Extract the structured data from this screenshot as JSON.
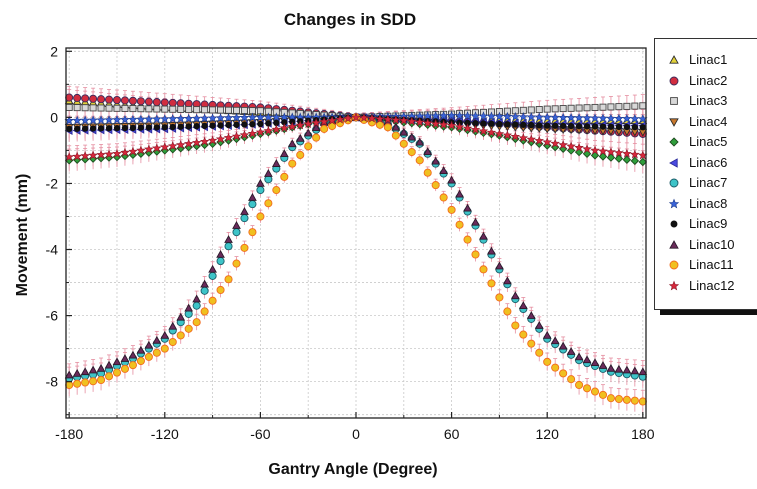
{
  "chart_data": {
    "type": "scatter",
    "title": "Changes in SDD",
    "xlabel": "Gantry Angle (Degree)",
    "ylabel": "Movement (mm)",
    "xlim": [
      -182,
      182
    ],
    "ylim": [
      -9.1,
      2.1
    ],
    "xticks": [
      -180,
      -120,
      -60,
      0,
      60,
      120,
      180
    ],
    "yticks": [
      2,
      0,
      -2,
      -4,
      -6,
      -8
    ],
    "grid": true,
    "error_bars": true,
    "legend_position": "right-outside",
    "series": [
      {
        "name": "Linac1",
        "marker": "triangle-up",
        "fill": "#e3d23a",
        "stroke": "#2b2b2b",
        "points": [
          [
            -180,
            0.5
          ],
          [
            -120,
            0.3
          ],
          [
            -60,
            0.15
          ],
          [
            0,
            0.0
          ],
          [
            60,
            -0.05
          ],
          [
            120,
            -0.1
          ],
          [
            180,
            -0.1
          ]
        ]
      },
      {
        "name": "Linac2",
        "marker": "circle",
        "fill": "#d12d3f",
        "stroke": "#3a2a5a",
        "points": [
          [
            -180,
            0.6
          ],
          [
            -120,
            0.45
          ],
          [
            -60,
            0.3
          ],
          [
            0,
            0.0
          ],
          [
            60,
            -0.1
          ],
          [
            120,
            -0.3
          ],
          [
            180,
            -0.5
          ]
        ]
      },
      {
        "name": "Linac3",
        "marker": "square",
        "fill": "#d8d8d8",
        "stroke": "#444444",
        "points": [
          [
            -180,
            0.3
          ],
          [
            -120,
            0.25
          ],
          [
            -60,
            0.2
          ],
          [
            0,
            0.0
          ],
          [
            60,
            0.1
          ],
          [
            120,
            0.25
          ],
          [
            180,
            0.35
          ]
        ]
      },
      {
        "name": "Linac4",
        "marker": "triangle-down",
        "fill": "#c8782d",
        "stroke": "#2b2b2b",
        "points": [
          [
            -180,
            -0.3
          ],
          [
            -120,
            -0.25
          ],
          [
            -60,
            -0.15
          ],
          [
            0,
            0.0
          ],
          [
            60,
            -0.2
          ],
          [
            120,
            -0.35
          ],
          [
            180,
            -0.45
          ]
        ]
      },
      {
        "name": "Linac5",
        "marker": "diamond",
        "fill": "#2f9e3b",
        "stroke": "#1e4a1e",
        "points": [
          [
            -180,
            -1.3
          ],
          [
            -150,
            -1.2
          ],
          [
            -120,
            -1.0
          ],
          [
            -90,
            -0.8
          ],
          [
            -60,
            -0.5
          ],
          [
            -30,
            -0.2
          ],
          [
            0,
            0.0
          ],
          [
            30,
            -0.15
          ],
          [
            60,
            -0.3
          ],
          [
            90,
            -0.55
          ],
          [
            120,
            -0.85
          ],
          [
            150,
            -1.15
          ],
          [
            180,
            -1.35
          ]
        ]
      },
      {
        "name": "Linac6",
        "marker": "triangle-left",
        "fill": "#4a4ae0",
        "stroke": "#2b2b9a",
        "points": [
          [
            -180,
            -0.4
          ],
          [
            -120,
            -0.35
          ],
          [
            -60,
            -0.2
          ],
          [
            0,
            0.0
          ],
          [
            60,
            -0.1
          ],
          [
            120,
            -0.2
          ],
          [
            180,
            -0.25
          ]
        ]
      },
      {
        "name": "Linac7",
        "marker": "circle",
        "fill": "#3ec4c8",
        "stroke": "#1b5a66",
        "points": [
          [
            -180,
            -7.9
          ],
          [
            -160,
            -7.75
          ],
          [
            -140,
            -7.3
          ],
          [
            -120,
            -6.7
          ],
          [
            -100,
            -5.7
          ],
          [
            -80,
            -3.9
          ],
          [
            -60,
            -2.2
          ],
          [
            -40,
            -0.9
          ],
          [
            -20,
            -0.2
          ],
          [
            0,
            0.0
          ],
          [
            20,
            -0.2
          ],
          [
            40,
            -0.8
          ],
          [
            60,
            -2.0
          ],
          [
            80,
            -3.7
          ],
          [
            100,
            -5.5
          ],
          [
            120,
            -6.7
          ],
          [
            140,
            -7.35
          ],
          [
            160,
            -7.7
          ],
          [
            180,
            -7.85
          ]
        ]
      },
      {
        "name": "Linac8",
        "marker": "star",
        "fill": "#3a63d8",
        "stroke": "#1c3a8a",
        "points": [
          [
            -180,
            -0.1
          ],
          [
            -120,
            -0.05
          ],
          [
            -60,
            0.0
          ],
          [
            0,
            0.0
          ],
          [
            60,
            0.05
          ],
          [
            120,
            0.0
          ],
          [
            180,
            -0.05
          ]
        ]
      },
      {
        "name": "Linac9",
        "marker": "circle-small",
        "fill": "#111111",
        "stroke": "#111111",
        "points": [
          [
            -180,
            -0.35
          ],
          [
            -120,
            -0.3
          ],
          [
            -60,
            -0.2
          ],
          [
            0,
            0.0
          ],
          [
            60,
            -0.15
          ],
          [
            120,
            -0.25
          ],
          [
            180,
            -0.3
          ]
        ]
      },
      {
        "name": "Linac10",
        "marker": "triangle-up",
        "fill": "#6a2a5a",
        "stroke": "#2b1a2b",
        "points": [
          [
            -180,
            -7.8
          ],
          [
            -160,
            -7.6
          ],
          [
            -140,
            -7.2
          ],
          [
            -120,
            -6.6
          ],
          [
            -100,
            -5.5
          ],
          [
            -80,
            -3.7
          ],
          [
            -60,
            -2.0
          ],
          [
            -40,
            -0.8
          ],
          [
            -20,
            -0.15
          ],
          [
            0,
            0.0
          ],
          [
            20,
            -0.15
          ],
          [
            40,
            -0.75
          ],
          [
            60,
            -1.9
          ],
          [
            80,
            -3.6
          ],
          [
            100,
            -5.4
          ],
          [
            120,
            -6.6
          ],
          [
            140,
            -7.25
          ],
          [
            160,
            -7.6
          ],
          [
            180,
            -7.7
          ]
        ]
      },
      {
        "name": "Linac11",
        "marker": "circle",
        "fill": "#f0c020",
        "stroke": "#f26b1d",
        "points": [
          [
            -180,
            -8.1
          ],
          [
            -160,
            -7.95
          ],
          [
            -140,
            -7.5
          ],
          [
            -120,
            -7.0
          ],
          [
            -100,
            -6.2
          ],
          [
            -80,
            -4.9
          ],
          [
            -60,
            -3.0
          ],
          [
            -40,
            -1.4
          ],
          [
            -20,
            -0.35
          ],
          [
            0,
            0.0
          ],
          [
            20,
            -0.3
          ],
          [
            40,
            -1.3
          ],
          [
            60,
            -2.8
          ],
          [
            80,
            -4.6
          ],
          [
            100,
            -6.3
          ],
          [
            120,
            -7.4
          ],
          [
            140,
            -8.1
          ],
          [
            160,
            -8.5
          ],
          [
            180,
            -8.6
          ]
        ]
      },
      {
        "name": "Linac12",
        "marker": "star",
        "fill": "#d8283c",
        "stroke": "#8a1a2a",
        "points": [
          [
            -180,
            -1.2
          ],
          [
            -150,
            -1.1
          ],
          [
            -120,
            -0.9
          ],
          [
            -90,
            -0.7
          ],
          [
            -60,
            -0.45
          ],
          [
            -30,
            -0.2
          ],
          [
            0,
            0.0
          ],
          [
            30,
            -0.1
          ],
          [
            60,
            -0.25
          ],
          [
            90,
            -0.5
          ],
          [
            120,
            -0.75
          ],
          [
            150,
            -1.0
          ],
          [
            180,
            -1.15
          ]
        ]
      }
    ]
  },
  "colors": {
    "axis": "#222222",
    "grid": "#c9c9c9",
    "errorbar": "#e58ea0",
    "background": "#ffffff"
  }
}
